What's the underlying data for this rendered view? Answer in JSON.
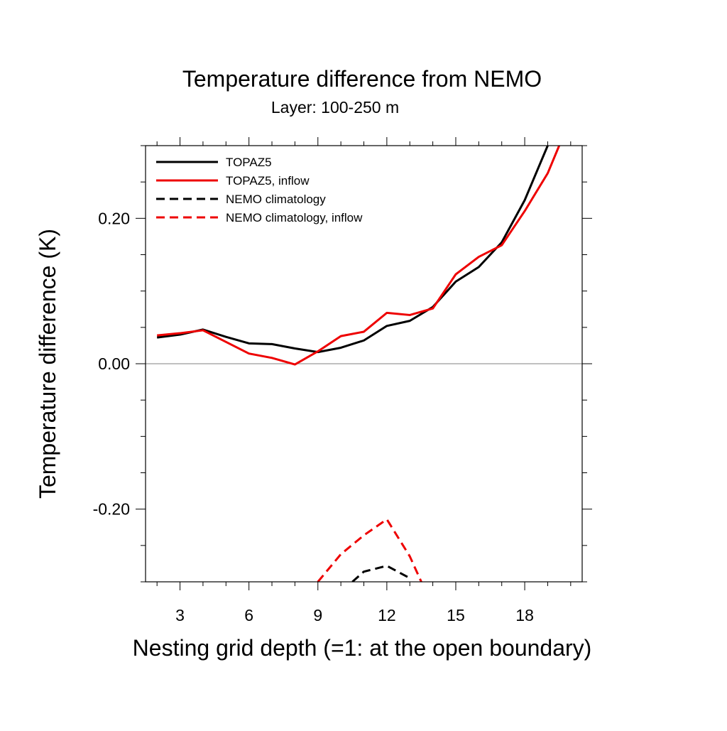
{
  "chart_data": {
    "type": "line",
    "title": "Temperature difference from NEMO",
    "subtitle": "Layer: 100-250 m",
    "xlabel": "Nesting grid depth (=1: at the open boundary)",
    "ylabel": "Temperature difference (K)",
    "xlim": [
      1.5,
      20.5
    ],
    "ylim": [
      -0.3,
      0.3
    ],
    "x_ticks": [
      3,
      6,
      9,
      12,
      15,
      18
    ],
    "x_tick_labels": [
      "3",
      "6",
      "9",
      "12",
      "15",
      "18"
    ],
    "y_ticks": [
      -0.2,
      0.0,
      0.2
    ],
    "y_tick_labels": [
      "-0.20",
      "0.00",
      "0.20"
    ],
    "reference_line": 0.0,
    "legend_position": "top-left",
    "series": [
      {
        "name": "TOPAZ5",
        "color": "#000000",
        "dash": "solid",
        "x": [
          2,
          3,
          4,
          5,
          6,
          7,
          8,
          9,
          10,
          11,
          12,
          13,
          14,
          15,
          16,
          17,
          18,
          19
        ],
        "values": [
          0.036,
          0.04,
          0.047,
          0.037,
          0.028,
          0.027,
          0.021,
          0.016,
          0.022,
          0.032,
          0.052,
          0.059,
          0.078,
          0.113,
          0.133,
          0.167,
          0.225,
          0.3
        ]
      },
      {
        "name": "TOPAZ5, inflow",
        "color": "#ee0000",
        "dash": "solid",
        "x": [
          2,
          3,
          4,
          5,
          6,
          7,
          8,
          9,
          10,
          11,
          12,
          13,
          14,
          15,
          16,
          17,
          18,
          19,
          19.5
        ],
        "values": [
          0.039,
          0.042,
          0.046,
          0.03,
          0.014,
          0.008,
          -0.001,
          0.017,
          0.038,
          0.044,
          0.07,
          0.067,
          0.076,
          0.123,
          0.147,
          0.163,
          0.21,
          0.262,
          0.3
        ]
      },
      {
        "name": "NEMO climatology",
        "color": "#000000",
        "dash": "dashed",
        "x": [
          10.5,
          11,
          12,
          13
        ],
        "values": [
          -0.3,
          -0.286,
          -0.278,
          -0.295
        ]
      },
      {
        "name": "NEMO climatology, inflow",
        "color": "#ee0000",
        "dash": "dashed",
        "x": [
          9,
          10,
          11,
          12,
          13,
          13.5
        ],
        "values": [
          -0.3,
          -0.262,
          -0.236,
          -0.214,
          -0.265,
          -0.3
        ]
      }
    ]
  }
}
